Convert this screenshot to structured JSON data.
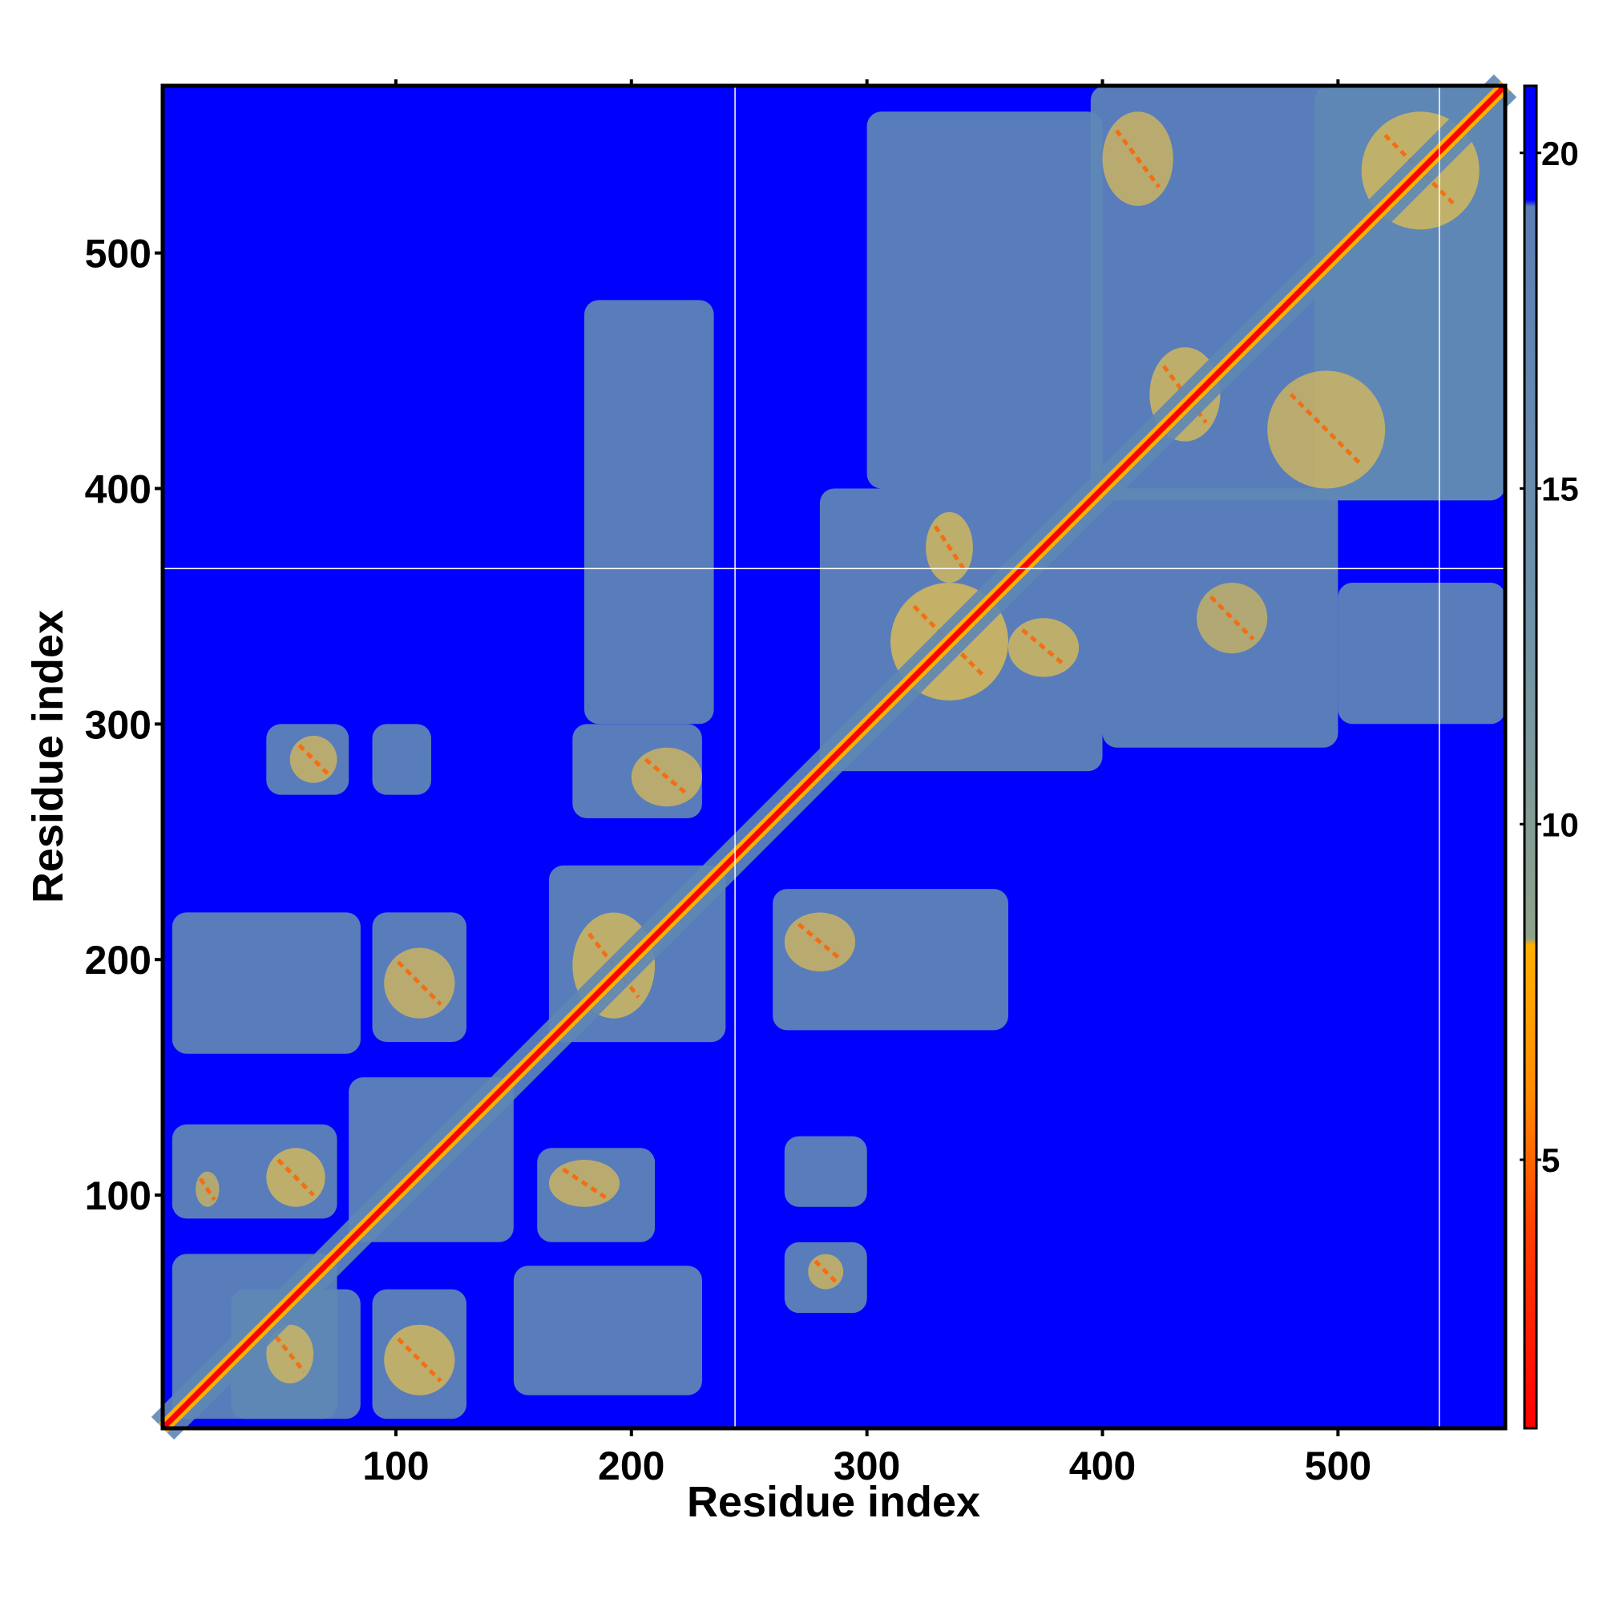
{
  "chart_data": {
    "type": "heatmap",
    "title": "",
    "xlabel": "Residue index",
    "ylabel": "Residue index",
    "xlim": [
      1,
      571
    ],
    "ylim": [
      1,
      571
    ],
    "x_ticks": [
      100,
      200,
      300,
      400,
      500
    ],
    "y_ticks": [
      100,
      200,
      300,
      400,
      500
    ],
    "grid": false,
    "colorbar": {
      "min": 1,
      "max": 21,
      "ticks": [
        5,
        10,
        15,
        20
      ],
      "stops": [
        {
          "value": 1,
          "color": "#ff0000"
        },
        {
          "value": 4,
          "color": "#ff4000"
        },
        {
          "value": 6,
          "color": "#ff8c00"
        },
        {
          "value": 8.2,
          "color": "#ffb000"
        },
        {
          "value": 8.3,
          "color": "#8fa28a"
        },
        {
          "value": 13,
          "color": "#6f92a8"
        },
        {
          "value": 19.2,
          "color": "#5b7fb5"
        },
        {
          "value": 19.3,
          "color": "#0000ff"
        },
        {
          "value": 21,
          "color": "#0000ff"
        }
      ]
    },
    "colors": {
      "background": "#0000ff",
      "mid": "#5f88b4",
      "contact": "#e8c24a",
      "near": "#ff0000"
    },
    "diagonal": {
      "from": 1,
      "to": 571
    },
    "regions": [
      {
        "x": [
          5,
          75
        ],
        "y": [
          5,
          75
        ]
      },
      {
        "x": [
          80,
          150
        ],
        "y": [
          80,
          150
        ]
      },
      {
        "x": [
          165,
          240
        ],
        "y": [
          165,
          240
        ]
      },
      {
        "x": [
          280,
          400
        ],
        "y": [
          280,
          400
        ]
      },
      {
        "x": [
          395,
          571
        ],
        "y": [
          395,
          571
        ]
      },
      {
        "x": [
          5,
          75
        ],
        "y": [
          90,
          130
        ]
      },
      {
        "x": [
          30,
          85
        ],
        "y": [
          5,
          60
        ]
      },
      {
        "x": [
          90,
          130
        ],
        "y": [
          5,
          60
        ]
      },
      {
        "x": [
          150,
          230
        ],
        "y": [
          15,
          70
        ]
      },
      {
        "x": [
          160,
          210
        ],
        "y": [
          80,
          120
        ]
      },
      {
        "x": [
          5,
          85
        ],
        "y": [
          160,
          220
        ]
      },
      {
        "x": [
          90,
          130
        ],
        "y": [
          165,
          220
        ]
      },
      {
        "x": [
          45,
          80
        ],
        "y": [
          270,
          300
        ]
      },
      {
        "x": [
          90,
          115
        ],
        "y": [
          270,
          300
        ]
      },
      {
        "x": [
          175,
          230
        ],
        "y": [
          260,
          300
        ]
      },
      {
        "x": [
          180,
          235
        ],
        "y": [
          300,
          480
        ]
      },
      {
        "x": [
          260,
          360
        ],
        "y": [
          170,
          230
        ]
      },
      {
        "x": [
          265,
          300
        ],
        "y": [
          50,
          80
        ]
      },
      {
        "x": [
          265,
          300
        ],
        "y": [
          95,
          125
        ]
      },
      {
        "x": [
          300,
          400
        ],
        "y": [
          400,
          560
        ]
      },
      {
        "x": [
          400,
          500
        ],
        "y": [
          290,
          400
        ]
      },
      {
        "x": [
          500,
          571
        ],
        "y": [
          300,
          360
        ]
      },
      {
        "x": [
          490,
          571
        ],
        "y": [
          395,
          571
        ]
      }
    ],
    "contacts": [
      {
        "x": [
          15,
          25
        ],
        "y": [
          95,
          110
        ],
        "strength": 0.7
      },
      {
        "x": [
          45,
          70
        ],
        "y": [
          95,
          120
        ],
        "strength": 0.9
      },
      {
        "x": [
          45,
          65
        ],
        "y": [
          20,
          45
        ],
        "strength": 0.8
      },
      {
        "x": [
          95,
          125
        ],
        "y": [
          15,
          45
        ],
        "strength": 0.9
      },
      {
        "x": [
          165,
          195
        ],
        "y": [
          95,
          115
        ],
        "strength": 0.8
      },
      {
        "x": [
          95,
          125
        ],
        "y": [
          175,
          205
        ],
        "strength": 0.8
      },
      {
        "x": [
          175,
          210
        ],
        "y": [
          175,
          220
        ],
        "strength": 0.9
      },
      {
        "x": [
          55,
          75
        ],
        "y": [
          275,
          295
        ],
        "strength": 0.8
      },
      {
        "x": [
          200,
          230
        ],
        "y": [
          265,
          290
        ],
        "strength": 0.8
      },
      {
        "x": [
          265,
          295
        ],
        "y": [
          195,
          220
        ],
        "strength": 0.8
      },
      {
        "x": [
          275,
          290
        ],
        "y": [
          60,
          75
        ],
        "strength": 0.8
      },
      {
        "x": [
          310,
          360
        ],
        "y": [
          310,
          360
        ],
        "strength": 1.0
      },
      {
        "x": [
          325,
          345
        ],
        "y": [
          360,
          390
        ],
        "strength": 0.9
      },
      {
        "x": [
          360,
          390
        ],
        "y": [
          320,
          345
        ],
        "strength": 0.9
      },
      {
        "x": [
          420,
          450
        ],
        "y": [
          420,
          460
        ],
        "strength": 0.9
      },
      {
        "x": [
          440,
          470
        ],
        "y": [
          330,
          360
        ],
        "strength": 0.7
      },
      {
        "x": [
          510,
          560
        ],
        "y": [
          510,
          560
        ],
        "strength": 0.9
      },
      {
        "x": [
          470,
          520
        ],
        "y": [
          400,
          450
        ],
        "strength": 0.8
      },
      {
        "x": [
          400,
          430
        ],
        "y": [
          520,
          560
        ],
        "strength": 0.8
      }
    ],
    "gaps": {
      "x": [
        244,
        543
      ],
      "y": [
        366
      ]
    }
  }
}
